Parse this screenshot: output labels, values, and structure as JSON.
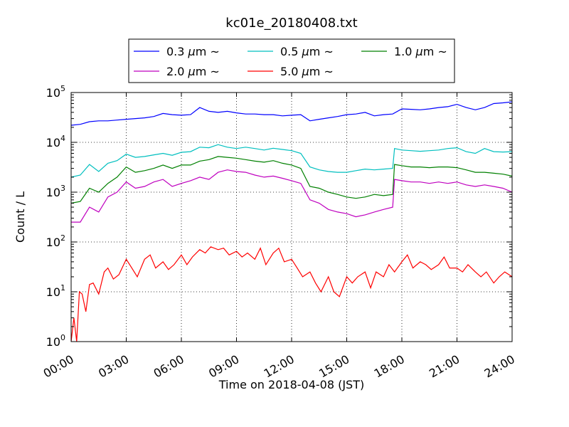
{
  "chart_data": {
    "type": "line",
    "title": "kc01e_20180408.txt",
    "xlabel": "Time on 2018-04-08 (JST)",
    "ylabel": "Count / L",
    "x_unit": "hours",
    "xlim": [
      0,
      24
    ],
    "ylim": [
      1,
      100000
    ],
    "y_scale": "log",
    "grid": true,
    "legend_position": "top-center",
    "x_ticks": [
      "00:00",
      "03:00",
      "06:00",
      "09:00",
      "12:00",
      "15:00",
      "18:00",
      "21:00",
      "24:00"
    ],
    "y_ticks": [
      {
        "base": "10",
        "exp": "0",
        "value": 1
      },
      {
        "base": "10",
        "exp": "1",
        "value": 10
      },
      {
        "base": "10",
        "exp": "2",
        "value": 100
      },
      {
        "base": "10",
        "exp": "3",
        "value": 1000
      },
      {
        "base": "10",
        "exp": "4",
        "value": 10000
      },
      {
        "base": "10",
        "exp": "5",
        "value": 100000
      }
    ],
    "series": [
      {
        "name": "0.3 μm ~",
        "label_main": "0.3",
        "label_unit": "μm",
        "color": "#0000ff",
        "x": [
          0,
          0.5,
          1,
          1.5,
          2,
          2.5,
          3,
          3.5,
          4,
          4.5,
          5,
          5.5,
          6,
          6.5,
          7,
          7.5,
          8,
          8.5,
          9,
          9.5,
          10,
          10.5,
          11,
          11.5,
          12,
          12.5,
          13,
          13.5,
          14,
          14.5,
          15,
          15.5,
          16,
          16.5,
          17,
          17.5,
          18,
          18.5,
          19,
          19.5,
          20,
          20.5,
          21,
          21.5,
          22,
          22.5,
          23,
          23.5,
          24
        ],
        "values": [
          22000,
          23000,
          26000,
          27000,
          27000,
          28000,
          29000,
          30000,
          31000,
          33000,
          38000,
          36000,
          35000,
          36000,
          50000,
          42000,
          40000,
          42000,
          39000,
          37000,
          37000,
          36000,
          36000,
          34000,
          35000,
          36000,
          27000,
          29000,
          31000,
          33000,
          36000,
          37000,
          40000,
          34000,
          36000,
          37000,
          47000,
          46000,
          45000,
          47000,
          50000,
          52000,
          58000,
          50000,
          45000,
          50000,
          60000,
          62000,
          65000
        ]
      },
      {
        "name": "0.5 μm ~",
        "label_main": "0.5",
        "label_unit": "μm",
        "color": "#00bfbf",
        "x": [
          0,
          0.5,
          1,
          1.5,
          2,
          2.5,
          3,
          3.5,
          4,
          4.5,
          5,
          5.5,
          6,
          6.5,
          7,
          7.5,
          8,
          8.5,
          9,
          9.5,
          10,
          10.5,
          11,
          11.5,
          12,
          12.5,
          13,
          13.5,
          14,
          14.5,
          15,
          15.5,
          16,
          16.5,
          17,
          17.5,
          17.6,
          18,
          18.5,
          19,
          19.5,
          20,
          20.5,
          21,
          21.5,
          22,
          22.5,
          23,
          23.5,
          24
        ],
        "values": [
          2000,
          2200,
          3600,
          2600,
          3800,
          4300,
          5800,
          5000,
          5200,
          5600,
          6000,
          5500,
          6300,
          6500,
          8000,
          7800,
          9000,
          8000,
          7500,
          8000,
          7500,
          7000,
          7600,
          7200,
          6800,
          6000,
          3200,
          2800,
          2600,
          2500,
          2500,
          2700,
          2900,
          2800,
          2900,
          3000,
          7500,
          7000,
          6800,
          6600,
          6800,
          7000,
          7500,
          7800,
          6500,
          6000,
          7500,
          6500,
          6400,
          6500
        ]
      },
      {
        "name": "1.0 μm ~",
        "label_main": "1.0",
        "label_unit": "μm",
        "color": "#008000",
        "x": [
          0,
          0.5,
          1,
          1.5,
          2,
          2.5,
          3,
          3.5,
          4,
          4.5,
          5,
          5.5,
          6,
          6.5,
          7,
          7.5,
          8,
          8.5,
          9,
          9.5,
          10,
          10.5,
          11,
          11.5,
          12,
          12.5,
          13,
          13.5,
          14,
          14.5,
          15,
          15.5,
          16,
          16.5,
          17,
          17.5,
          17.6,
          18,
          18.5,
          19,
          19.5,
          20,
          20.5,
          21,
          21.5,
          22,
          22.5,
          23,
          23.5,
          24
        ],
        "values": [
          600,
          650,
          1200,
          1000,
          1500,
          2000,
          3200,
          2500,
          2700,
          3000,
          3500,
          3000,
          3500,
          3500,
          4200,
          4500,
          5200,
          5000,
          4800,
          4500,
          4200,
          4000,
          4300,
          3800,
          3500,
          3000,
          1300,
          1200,
          1000,
          900,
          800,
          750,
          800,
          900,
          850,
          900,
          3600,
          3400,
          3200,
          3200,
          3100,
          3200,
          3200,
          3100,
          2800,
          2500,
          2500,
          2400,
          2300,
          2100
        ]
      },
      {
        "name": "2.0 μm ~",
        "label_main": "2.0",
        "label_unit": "μm",
        "color": "#bf00bf",
        "x": [
          0,
          0.5,
          1,
          1.5,
          2,
          2.5,
          3,
          3.5,
          4,
          4.5,
          5,
          5.5,
          6,
          6.5,
          7,
          7.5,
          8,
          8.5,
          9,
          9.5,
          10,
          10.5,
          11,
          11.5,
          12,
          12.5,
          13,
          13.5,
          14,
          14.5,
          15,
          15.5,
          16,
          16.5,
          17,
          17.5,
          17.6,
          18,
          18.5,
          19,
          19.5,
          20,
          20.5,
          21,
          21.5,
          22,
          22.5,
          23,
          23.5,
          24
        ],
        "values": [
          250,
          250,
          500,
          400,
          800,
          1000,
          1600,
          1200,
          1300,
          1600,
          1800,
          1300,
          1500,
          1700,
          2000,
          1800,
          2500,
          2800,
          2600,
          2500,
          2200,
          2000,
          2100,
          1900,
          1700,
          1500,
          700,
          600,
          450,
          400,
          370,
          320,
          350,
          400,
          450,
          500,
          1800,
          1700,
          1600,
          1600,
          1500,
          1600,
          1500,
          1600,
          1400,
          1300,
          1400,
          1300,
          1200,
          1000
        ]
      },
      {
        "name": "5.0 μm ~",
        "label_main": "5.0",
        "label_unit": "μm",
        "color": "#ff0000",
        "x": [
          0,
          0.15,
          0.3,
          0.45,
          0.6,
          0.8,
          1,
          1.2,
          1.5,
          1.8,
          2,
          2.3,
          2.6,
          3,
          3.3,
          3.6,
          4,
          4.3,
          4.6,
          5,
          5.3,
          5.6,
          6,
          6.3,
          6.6,
          7,
          7.3,
          7.6,
          8,
          8.3,
          8.6,
          9,
          9.3,
          9.6,
          10,
          10.3,
          10.6,
          11,
          11.3,
          11.6,
          12,
          12.3,
          12.6,
          13,
          13.3,
          13.6,
          14,
          14.3,
          14.6,
          15,
          15.3,
          15.6,
          16,
          16.3,
          16.6,
          17,
          17.3,
          17.6,
          18,
          18.3,
          18.6,
          19,
          19.3,
          19.6,
          20,
          20.3,
          20.6,
          21,
          21.3,
          21.6,
          22,
          22.3,
          22.6,
          23,
          23.3,
          23.6,
          24
        ],
        "values": [
          1,
          3,
          1,
          10,
          9,
          4,
          14,
          15,
          9,
          25,
          30,
          18,
          22,
          45,
          30,
          20,
          45,
          55,
          30,
          40,
          28,
          35,
          55,
          35,
          50,
          70,
          60,
          80,
          70,
          75,
          55,
          65,
          50,
          60,
          45,
          75,
          35,
          60,
          75,
          40,
          45,
          30,
          20,
          25,
          15,
          10,
          20,
          10,
          8,
          20,
          15,
          20,
          25,
          12,
          25,
          20,
          35,
          25,
          40,
          55,
          30,
          40,
          35,
          28,
          35,
          50,
          30,
          30,
          25,
          35,
          25,
          20,
          25,
          15,
          20,
          25,
          20
        ]
      }
    ]
  }
}
